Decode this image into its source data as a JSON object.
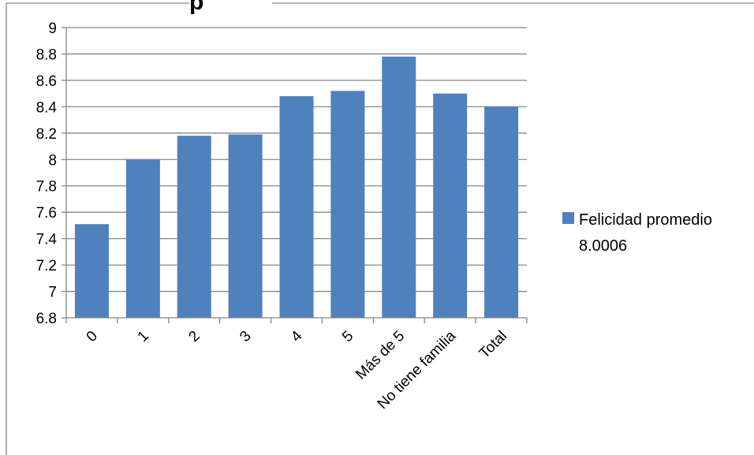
{
  "chart_data": {
    "type": "bar",
    "title_fragment": "p",
    "categories": [
      "0",
      "1",
      "2",
      "3",
      "4",
      "5",
      "Más de 5",
      "No tiene familia",
      "Total"
    ],
    "series": [
      {
        "name": "Felicidad promedio 8.0006",
        "name_lines": [
          "Felicidad promedio",
          "8.0006"
        ],
        "values": [
          7.51,
          8.0,
          8.18,
          8.19,
          8.48,
          8.52,
          8.78,
          8.5,
          8.4
        ],
        "color": "#4F81BD"
      }
    ],
    "yticks": [
      "6.8",
      "7",
      "7.2",
      "7.4",
      "7.6",
      "7.8",
      "8",
      "8.2",
      "8.4",
      "8.6",
      "8.8",
      "9"
    ],
    "ylim": [
      6.8,
      9
    ],
    "xlabel": "",
    "ylabel": "",
    "grid": true,
    "legend_position": "right"
  }
}
